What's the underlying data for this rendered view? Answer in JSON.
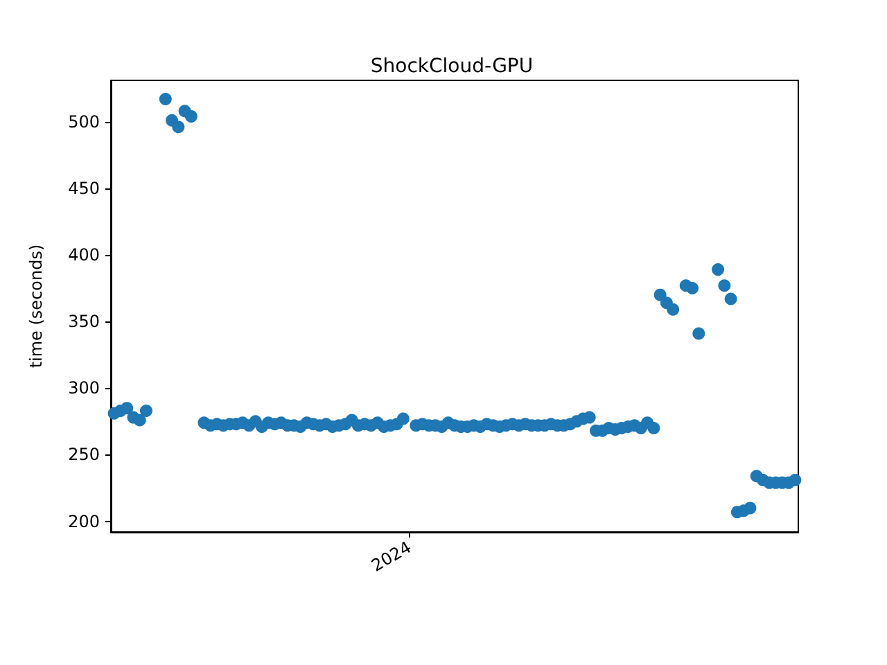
{
  "chart_data": {
    "type": "scatter",
    "title": "ShockCloud-GPU",
    "ylabel": "time (seconds)",
    "marker": "circle",
    "grid": false,
    "categories": [
      null,
      null,
      null,
      null,
      null,
      null,
      null,
      null,
      null,
      null,
      null,
      null,
      null,
      null,
      null,
      null,
      null,
      null,
      null,
      null,
      null,
      null,
      null,
      null,
      null,
      null,
      null,
      null,
      null,
      null,
      null,
      null,
      null,
      null,
      null,
      null,
      null,
      null,
      null,
      null,
      null,
      null,
      null,
      null,
      null,
      null,
      "2024",
      null,
      null,
      null,
      null,
      null,
      null,
      null,
      null,
      null,
      null,
      null,
      null,
      null,
      null,
      null,
      null,
      null,
      null,
      null,
      null,
      null,
      null,
      null,
      null,
      null,
      null,
      null,
      null,
      null,
      null,
      null,
      null,
      null,
      null,
      null,
      null,
      null,
      null,
      null,
      null,
      null,
      null,
      null,
      null,
      null,
      null,
      null,
      null,
      null,
      null,
      null,
      null,
      null,
      null,
      null,
      null,
      null,
      null,
      null,
      null
    ],
    "ylim": [
      192,
      531
    ],
    "yticks": [
      200,
      250,
      300,
      350,
      400,
      450,
      500
    ],
    "series": [
      {
        "color": "#1f77b4",
        "values": [
          281,
          283,
          285,
          278,
          276,
          283,
          null,
          null,
          517,
          501,
          496,
          508,
          504,
          null,
          274,
          272,
          273,
          272,
          273,
          273,
          274,
          272,
          275,
          271,
          274,
          273,
          274,
          272,
          272,
          271,
          274,
          273,
          272,
          273,
          271,
          272,
          273,
          276,
          272,
          273,
          272,
          274,
          271,
          272,
          273,
          277,
          null,
          272,
          273,
          272,
          272,
          271,
          274,
          272,
          271,
          271,
          272,
          271,
          273,
          272,
          271,
          272,
          273,
          272,
          273,
          272,
          272,
          272,
          273,
          272,
          272,
          273,
          275,
          277,
          278,
          268,
          268,
          270,
          269,
          270,
          271,
          272,
          270,
          274,
          270,
          370,
          364,
          359,
          null,
          377,
          375,
          341,
          null,
          null,
          389,
          377,
          367,
          207,
          208,
          210,
          234,
          231,
          229,
          229,
          229,
          229,
          231
        ]
      }
    ]
  }
}
